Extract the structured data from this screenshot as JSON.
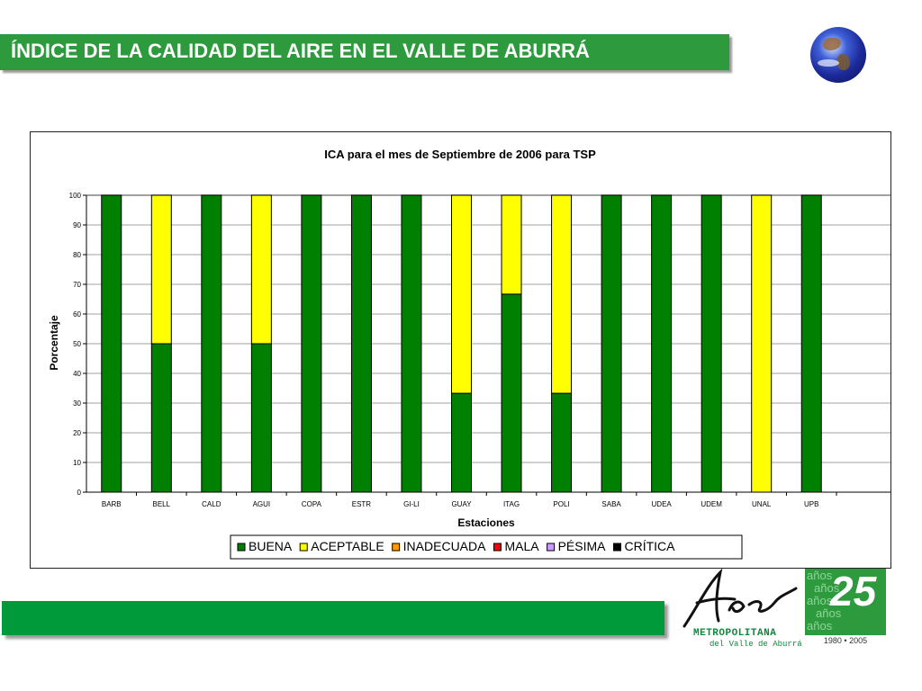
{
  "header": {
    "title": "ÍNDICE DE LA CALIDAD DEL AIRE EN EL VALLE DE ABURRÁ"
  },
  "logo": {
    "name": "METROPOLITANA",
    "sub": "del Valle de Aburrá",
    "script": "Area"
  },
  "badge": {
    "number": "25",
    "years": "1980 • 2005",
    "ghost_word": "años"
  },
  "colors": {
    "title_bar": "#2e9a3e",
    "bottom_bar": "#009a3a"
  },
  "chart_data": {
    "type": "bar",
    "stacked": true,
    "title": "ICA para el mes de Septiembre de 2006 para TSP",
    "xlabel": "Estaciones",
    "ylabel": "Porcentaje",
    "ylim": [
      0,
      100
    ],
    "yticks": [
      0,
      10,
      20,
      30,
      40,
      50,
      60,
      70,
      80,
      90,
      100
    ],
    "grid": true,
    "legend_position": "bottom",
    "categories": [
      "BARB",
      "BELL",
      "CALD",
      "AGUI",
      "COPA",
      "ESTR",
      "GI-LI",
      "GUAY",
      "ITAG",
      "POLI",
      "SABA",
      "UDEA",
      "UDEM",
      "UNAL",
      "UPB"
    ],
    "series": [
      {
        "name": "BUENA",
        "color": "#008000",
        "values": [
          100,
          50,
          100,
          50,
          100,
          100,
          100,
          33.3,
          66.7,
          33.3,
          100,
          100,
          100,
          0,
          100
        ]
      },
      {
        "name": "ACEPTABLE",
        "color": "#ffff00",
        "values": [
          0,
          50,
          0,
          50,
          0,
          0,
          0,
          66.7,
          33.3,
          66.7,
          0,
          0,
          0,
          100,
          0
        ]
      },
      {
        "name": "INADECUADA",
        "color": "#ff9900",
        "values": [
          0,
          0,
          0,
          0,
          0,
          0,
          0,
          0,
          0,
          0,
          0,
          0,
          0,
          0,
          0
        ]
      },
      {
        "name": "MALA",
        "color": "#ff0000",
        "values": [
          0,
          0,
          0,
          0,
          0,
          0,
          0,
          0,
          0,
          0,
          0,
          0,
          0,
          0,
          0
        ]
      },
      {
        "name": "PÉSIMA",
        "color": "#cc99ff",
        "values": [
          0,
          0,
          0,
          0,
          0,
          0,
          0,
          0,
          0,
          0,
          0,
          0,
          0,
          0,
          0
        ]
      },
      {
        "name": "CRÍTICA",
        "color": "#000000",
        "values": [
          0,
          0,
          0,
          0,
          0,
          0,
          0,
          0,
          0,
          0,
          0,
          0,
          0,
          0,
          0
        ]
      }
    ]
  }
}
